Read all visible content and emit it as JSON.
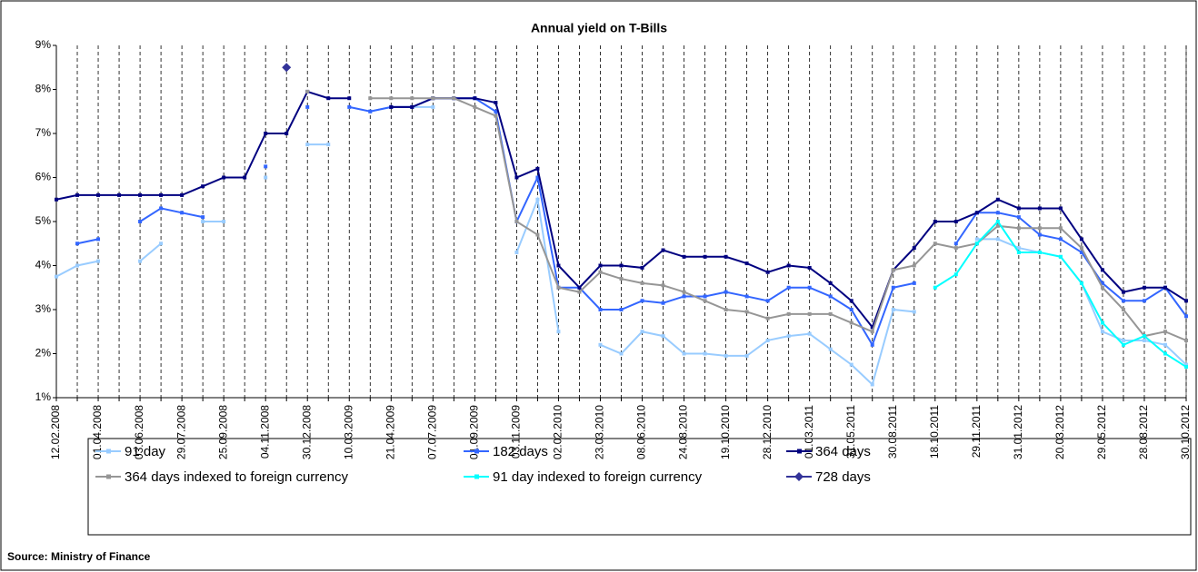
{
  "chart_data": {
    "type": "line",
    "title": "Annual yield on T-Bills",
    "source": "Source: Ministry of Finance",
    "categories": [
      "12.02.2008",
      null,
      "01.04.2008",
      null,
      "03.06.2008",
      null,
      "29.07.2008",
      null,
      "25.09.2008",
      null,
      "04.11.2008",
      null,
      "30.12.2008",
      null,
      "10.03.2009",
      null,
      "21.04.2009",
      null,
      "07.07.2009",
      null,
      "01.09.2009",
      null,
      "03.11.2009",
      null,
      "02.02.2010",
      null,
      "23.03.2010",
      null,
      "08.06.2010",
      null,
      "24.08.2010",
      null,
      "19.10.2010",
      null,
      "28.12.2010",
      null,
      "01.03.2011",
      null,
      "31.05.2011",
      null,
      "30.08.2011",
      null,
      "18.10.2011",
      null,
      "29.11.2011",
      null,
      "31.01.2012",
      null,
      "20.03.2012",
      null,
      "29.05.2012",
      null,
      "28.08.2012",
      null,
      "30.10.2012"
    ],
    "series": [
      {
        "name": "91 day",
        "color": "#99ccff",
        "marker": "square",
        "values": [
          3.75,
          4.0,
          4.1,
          null,
          4.1,
          4.5,
          null,
          5.0,
          5.0,
          null,
          6.0,
          null,
          6.75,
          6.75,
          null,
          7.5,
          7.6,
          7.6,
          7.6,
          null,
          null,
          null,
          4.3,
          5.5,
          2.5,
          null,
          2.2,
          2.0,
          2.5,
          2.4,
          2.0,
          2.0,
          1.95,
          1.95,
          2.3,
          2.4,
          2.45,
          2.1,
          1.75,
          1.3,
          3.0,
          2.95,
          null,
          null,
          4.6,
          4.6,
          4.4,
          4.3,
          4.2,
          3.6,
          2.5,
          2.3,
          2.3,
          2.2,
          1.75
        ]
      },
      {
        "name": "182 days",
        "color": "#3366ff",
        "marker": "square",
        "values": [
          null,
          4.5,
          4.6,
          null,
          5.0,
          5.3,
          5.2,
          5.1,
          null,
          null,
          6.25,
          null,
          7.6,
          null,
          7.6,
          7.5,
          7.6,
          7.6,
          7.8,
          7.8,
          7.8,
          7.5,
          5.0,
          6.0,
          3.5,
          3.5,
          3.0,
          3.0,
          3.2,
          3.15,
          3.3,
          3.3,
          3.4,
          3.3,
          3.2,
          3.5,
          3.5,
          3.3,
          3.0,
          2.2,
          3.5,
          3.6,
          null,
          4.5,
          5.2,
          5.2,
          5.1,
          4.7,
          4.6,
          4.3,
          3.6,
          3.2,
          3.2,
          3.5,
          2.85
        ]
      },
      {
        "name": "364 days",
        "color": "#000080",
        "marker": "square",
        "values": [
          5.5,
          5.6,
          5.6,
          5.6,
          5.6,
          5.6,
          5.6,
          5.8,
          6.0,
          6.0,
          7.0,
          7.0,
          7.95,
          7.8,
          7.8,
          null,
          7.6,
          7.6,
          7.8,
          7.8,
          7.8,
          7.7,
          6.0,
          6.2,
          4.0,
          3.5,
          4.0,
          4.0,
          3.95,
          4.35,
          4.2,
          4.2,
          4.2,
          4.05,
          3.85,
          4.0,
          3.95,
          3.6,
          3.2,
          2.6,
          3.9,
          4.4,
          5.0,
          5.0,
          5.2,
          5.5,
          5.3,
          5.3,
          5.3,
          4.6,
          3.9,
          3.4,
          3.5,
          3.5,
          3.2
        ]
      },
      {
        "name": "364 days indexed to foreign currency",
        "color": "#969696",
        "marker": "square",
        "values": [
          null,
          null,
          null,
          null,
          null,
          null,
          null,
          null,
          null,
          null,
          null,
          null,
          7.95,
          null,
          null,
          7.8,
          7.8,
          7.8,
          7.8,
          7.8,
          7.6,
          7.4,
          5.0,
          4.7,
          3.5,
          3.4,
          3.85,
          3.7,
          3.6,
          3.55,
          3.4,
          3.2,
          3.0,
          2.95,
          2.8,
          2.9,
          2.9,
          2.9,
          2.7,
          2.5,
          3.9,
          4.0,
          4.5,
          4.4,
          4.5,
          4.9,
          4.85,
          4.85,
          4.85,
          4.4,
          3.5,
          3.0,
          2.4,
          2.5,
          2.3
        ]
      },
      {
        "name": "91 day indexed to foreign currency",
        "color": "#00ffff",
        "marker": "square",
        "values": [
          null,
          null,
          null,
          null,
          null,
          null,
          null,
          null,
          null,
          null,
          null,
          null,
          null,
          null,
          null,
          null,
          null,
          null,
          null,
          null,
          null,
          null,
          null,
          null,
          null,
          null,
          null,
          null,
          null,
          null,
          null,
          null,
          null,
          null,
          null,
          null,
          null,
          null,
          null,
          null,
          null,
          null,
          3.5,
          3.8,
          4.5,
          5.0,
          4.3,
          4.3,
          4.2,
          3.6,
          2.7,
          2.2,
          2.4,
          2.0,
          1.7
        ]
      },
      {
        "name": "728 days",
        "color": "#333399",
        "marker": "diamond",
        "values": [
          null,
          null,
          null,
          null,
          null,
          null,
          null,
          null,
          null,
          null,
          null,
          8.5,
          null,
          null,
          null,
          null,
          null,
          null,
          null,
          null,
          null,
          null,
          null,
          null,
          null,
          null,
          null,
          null,
          null,
          null,
          null,
          null,
          null,
          null,
          null,
          null,
          null,
          null,
          null,
          null,
          null,
          null,
          null,
          null,
          null,
          null,
          null,
          null,
          null,
          null,
          null,
          null,
          null,
          null,
          null
        ]
      }
    ],
    "ylim": [
      1,
      9
    ],
    "yticks": [
      {
        "value": 1,
        "label": "1%"
      },
      {
        "value": 2,
        "label": "2%"
      },
      {
        "value": 3,
        "label": "3%"
      },
      {
        "value": 4,
        "label": "4%"
      },
      {
        "value": 5,
        "label": "5%"
      },
      {
        "value": 6,
        "label": "6%"
      },
      {
        "value": 7,
        "label": "7%"
      },
      {
        "value": 8,
        "label": "8%"
      },
      {
        "value": 9,
        "label": "9%"
      }
    ],
    "grid": "vertical-dashed",
    "legend": "bottom"
  }
}
